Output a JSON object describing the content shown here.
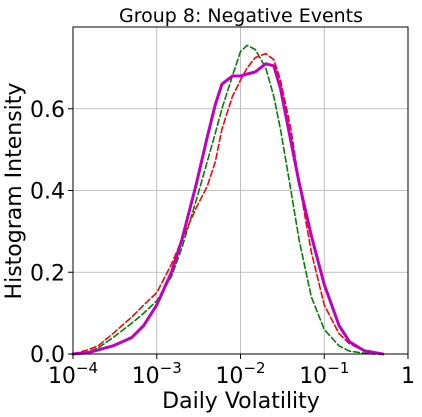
{
  "chart_data": {
    "type": "line",
    "title": "Group 8: Negative Events",
    "xlabel": "Daily Volatility",
    "ylabel": "Histogram Intensity",
    "x_scale": "log",
    "xlim": [
      0.0001,
      1
    ],
    "ylim": [
      0.0,
      0.8
    ],
    "grid": true,
    "x_ticks": [
      {
        "value": 0.0001,
        "base": "10",
        "exp": "−4"
      },
      {
        "value": 0.001,
        "base": "10",
        "exp": "−3"
      },
      {
        "value": 0.01,
        "base": "10",
        "exp": "−2"
      },
      {
        "value": 0.1,
        "base": "10",
        "exp": "−1"
      },
      {
        "value": 1,
        "base": "1",
        "exp": ""
      }
    ],
    "y_ticks": [
      {
        "value": 0.0,
        "label": "0.0"
      },
      {
        "value": 0.2,
        "label": "0.2"
      },
      {
        "value": 0.4,
        "label": "0.4"
      },
      {
        "value": 0.6,
        "label": "0.6"
      }
    ],
    "series": [
      {
        "color": "#008000",
        "dash": "dashed",
        "x": [
          0.0001,
          0.00015,
          0.0002,
          0.0003,
          0.0005,
          0.0007,
          0.001,
          0.0015,
          0.002,
          0.003,
          0.004,
          0.005,
          0.006,
          0.008,
          0.01,
          0.012,
          0.015,
          0.02,
          0.025,
          0.03,
          0.04,
          0.05,
          0.07,
          0.1,
          0.15,
          0.2,
          0.3,
          0.4
        ],
        "y": [
          0.0,
          0.005,
          0.015,
          0.04,
          0.075,
          0.1,
          0.13,
          0.19,
          0.26,
          0.38,
          0.47,
          0.54,
          0.6,
          0.68,
          0.74,
          0.755,
          0.745,
          0.7,
          0.63,
          0.55,
          0.4,
          0.28,
          0.14,
          0.06,
          0.02,
          0.007,
          0.002,
          0.0
        ]
      },
      {
        "color": "#ff0000",
        "dash": "dashed",
        "x": [
          0.0001,
          0.00015,
          0.0002,
          0.0003,
          0.0005,
          0.0007,
          0.001,
          0.0015,
          0.002,
          0.003,
          0.004,
          0.005,
          0.006,
          0.008,
          0.01,
          0.012,
          0.015,
          0.02,
          0.025,
          0.03,
          0.04,
          0.05,
          0.07,
          0.1,
          0.15,
          0.2,
          0.3,
          0.4
        ],
        "y": [
          0.0,
          0.01,
          0.02,
          0.05,
          0.09,
          0.12,
          0.15,
          0.22,
          0.28,
          0.36,
          0.41,
          0.47,
          0.55,
          0.63,
          0.67,
          0.7,
          0.725,
          0.735,
          0.72,
          0.67,
          0.55,
          0.42,
          0.25,
          0.12,
          0.05,
          0.025,
          0.008,
          0.0
        ]
      },
      {
        "color": "#c000c0",
        "dash": "solid",
        "x": [
          0.0001,
          0.00015,
          0.0002,
          0.0003,
          0.0005,
          0.0007,
          0.001,
          0.0015,
          0.002,
          0.003,
          0.004,
          0.005,
          0.006,
          0.008,
          0.01,
          0.012,
          0.015,
          0.02,
          0.025,
          0.03,
          0.04,
          0.05,
          0.07,
          0.1,
          0.15,
          0.2,
          0.3,
          0.5
        ],
        "y": [
          0.0,
          0.003,
          0.01,
          0.02,
          0.04,
          0.07,
          0.12,
          0.2,
          0.28,
          0.42,
          0.53,
          0.61,
          0.66,
          0.68,
          0.68,
          0.685,
          0.69,
          0.71,
          0.705,
          0.65,
          0.52,
          0.42,
          0.29,
          0.17,
          0.07,
          0.03,
          0.008,
          0.0
        ]
      }
    ]
  }
}
